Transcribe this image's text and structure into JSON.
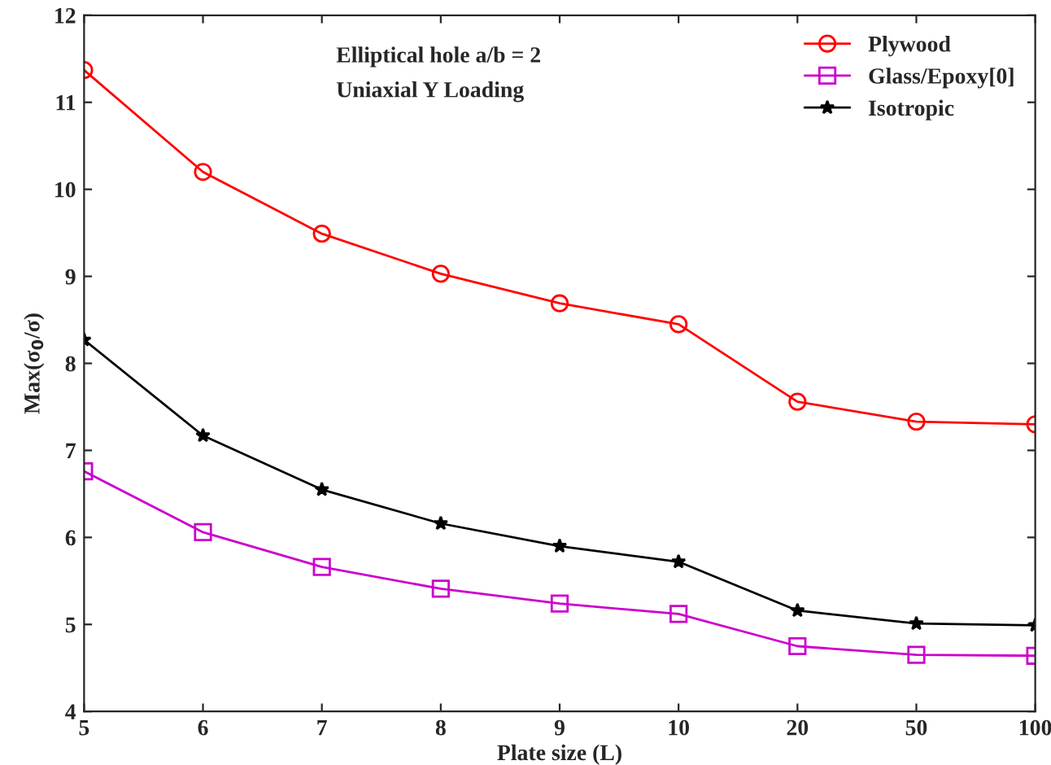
{
  "chart_data": {
    "type": "line",
    "xlabel": "Plate size (L)",
    "ylabel": "Max(σ$_{0}$/σ)",
    "categories": [
      "5",
      "6",
      "7",
      "8",
      "9",
      "10",
      "20",
      "50",
      "100"
    ],
    "series": [
      {
        "name": "Plywood",
        "color": "#ff0000",
        "marker": "circle",
        "values": [
          11.37,
          10.2,
          9.49,
          9.03,
          8.69,
          8.45,
          7.56,
          7.33,
          7.3
        ]
      },
      {
        "name": "Glass/Epoxy[0]",
        "color": "#cc00cc",
        "marker": "square",
        "values": [
          6.76,
          6.06,
          5.66,
          5.41,
          5.24,
          5.12,
          4.75,
          4.65,
          4.64
        ]
      },
      {
        "name": "Isotropic",
        "color": "#000000",
        "marker": "star",
        "values": [
          8.27,
          7.17,
          6.55,
          6.16,
          5.9,
          5.72,
          5.16,
          5.01,
          4.99
        ]
      }
    ],
    "annotations": [
      "Elliptical hole a/b = 2",
      "Uniaxial Y Loading"
    ],
    "ylim": [
      4,
      12
    ],
    "yticks": [
      4,
      5,
      6,
      7,
      8,
      9,
      10,
      11,
      12
    ],
    "grid": false,
    "legend": "top right",
    "line_style": "solid"
  }
}
